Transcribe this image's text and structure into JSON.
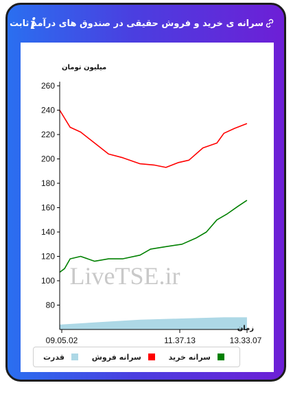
{
  "header": {
    "title": "سرانه ی خرید و فروش حقیقی در صندوق های درآمد ثابت",
    "info_icon": "i"
  },
  "watermark": "LiveTSE.ir",
  "chart_data": {
    "type": "line",
    "ylabel": "میلیون تومان",
    "xlabel": "زمان",
    "ylim": [
      60,
      260
    ],
    "yticks": [
      80,
      100,
      120,
      140,
      160,
      180,
      200,
      220,
      240,
      260
    ],
    "xticks": [
      "09.05.02",
      "11.37.13",
      "13.33.07"
    ],
    "x_range": [
      "09:05:02",
      "13:33:07"
    ],
    "grid": false,
    "legend_position": "bottom",
    "series": [
      {
        "name": "سرانه فروش",
        "color": "#ff0000",
        "x": [
          "09:05",
          "09:20",
          "09:35",
          "09:55",
          "10:15",
          "10:35",
          "11:00",
          "11:20",
          "11:37",
          "11:55",
          "12:10",
          "12:30",
          "12:50",
          "13:00",
          "13:15",
          "13:33"
        ],
        "values": [
          240,
          226,
          222,
          213,
          204,
          201,
          196,
          195,
          193,
          197,
          199,
          209,
          213,
          221,
          225,
          229
        ]
      },
      {
        "name": "سرانه خرید",
        "color": "#008000",
        "x": [
          "09:05",
          "09:12",
          "09:20",
          "09:35",
          "09:55",
          "10:15",
          "10:35",
          "11:00",
          "11:15",
          "11:37",
          "12:00",
          "12:20",
          "12:35",
          "12:50",
          "13:05",
          "13:20",
          "13:33"
        ],
        "values": [
          107,
          110,
          118,
          120,
          116,
          118,
          118,
          121,
          126,
          128,
          130,
          135,
          140,
          150,
          155,
          161,
          166
        ]
      },
      {
        "name": "قدرت",
        "color": "#add8e6",
        "type": "area",
        "x": [
          "09:05",
          "10:00",
          "11:00",
          "12:00",
          "13:00",
          "13:33"
        ],
        "values": [
          64,
          66,
          68,
          69,
          70,
          70
        ]
      }
    ]
  }
}
